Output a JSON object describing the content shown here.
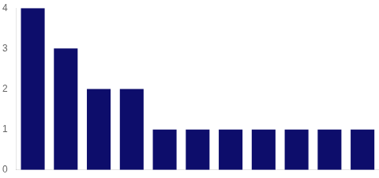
{
  "chart_data": {
    "type": "bar",
    "categories": [
      null,
      null,
      null,
      null,
      null,
      null,
      null,
      null,
      null,
      null,
      null
    ],
    "values": [
      4.0,
      3.0,
      2.0,
      2.0,
      1.0,
      1.0,
      1.0,
      1.0,
      1.0,
      1.0,
      1.0
    ],
    "color": "#0d0d6b",
    "ylim": [
      0,
      4
    ],
    "yticks": [
      0,
      1,
      2,
      3,
      4
    ],
    "grid": false,
    "tick_labels": "y"
  }
}
